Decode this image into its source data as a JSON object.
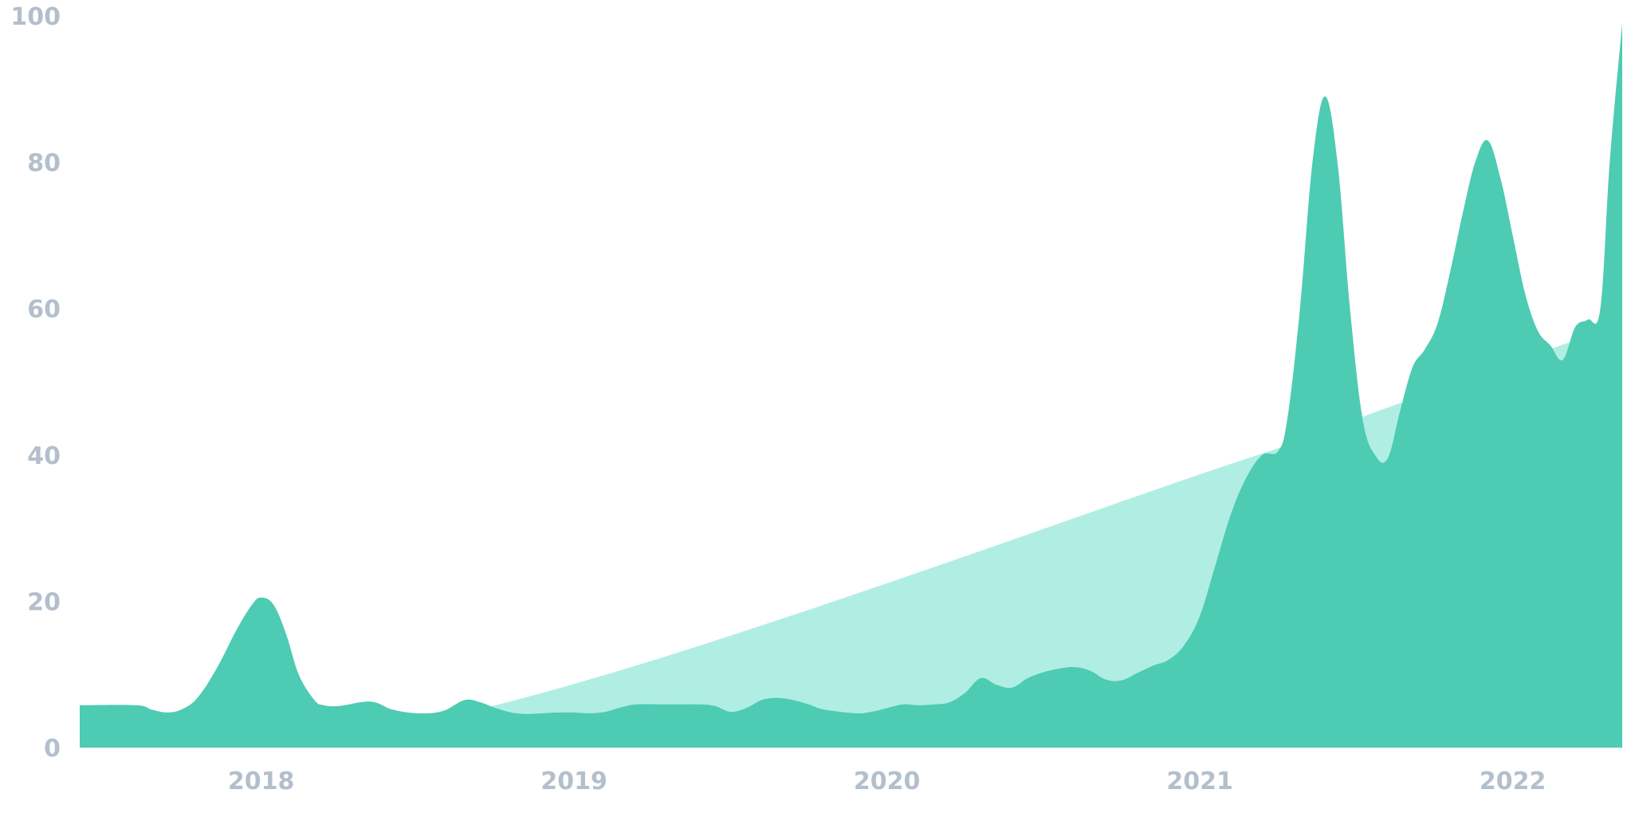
{
  "chart_data": {
    "type": "area",
    "title": "",
    "xlabel": "",
    "ylabel": "",
    "ylim": [
      0,
      100
    ],
    "y_ticks": [
      "0",
      "20",
      "40",
      "60",
      "80",
      "100"
    ],
    "x_ticks": [
      "2018",
      "2019",
      "2020",
      "2021",
      "2022"
    ],
    "x_tick_values": [
      2018.0,
      2019.0,
      2020.0,
      2021.0,
      2022.0
    ],
    "xlim": [
      2017.42,
      2022.35
    ],
    "grid": false,
    "legend": "none",
    "series": [
      {
        "role": "trend",
        "color": "#b0eee4",
        "x": [
          2017.42,
          2018.6,
          2021.15,
          2021.57,
          2022.35
        ],
        "y": [
          5.5,
          4.3,
          39.5,
          46,
          58
        ]
      },
      {
        "role": "main",
        "color": "#4ecbb3",
        "x": [
          2017.42,
          2017.6,
          2017.65,
          2017.7,
          2017.75,
          2017.8,
          2017.86,
          2017.92,
          2017.97,
          2018.0,
          2018.04,
          2018.08,
          2018.12,
          2018.17,
          2018.2,
          2018.25,
          2018.35,
          2018.42,
          2018.5,
          2018.58,
          2018.65,
          2018.7,
          2018.75,
          2018.8,
          2018.85,
          2018.9,
          2018.95,
          2019.0,
          2019.05,
          2019.1,
          2019.15,
          2019.2,
          2019.3,
          2019.4,
          2019.45,
          2019.5,
          2019.55,
          2019.6,
          2019.65,
          2019.7,
          2019.75,
          2019.8,
          2019.9,
          2019.95,
          2020.0,
          2020.05,
          2020.1,
          2020.15,
          2020.2,
          2020.25,
          2020.3,
          2020.35,
          2020.4,
          2020.45,
          2020.5,
          2020.55,
          2020.6,
          2020.65,
          2020.7,
          2020.75,
          2020.8,
          2020.85,
          2020.9,
          2020.95,
          2021.0,
          2021.05,
          2021.1,
          2021.15,
          2021.2,
          2021.25,
          2021.28,
          2021.32,
          2021.36,
          2021.4,
          2021.44,
          2021.48,
          2021.52,
          2021.56,
          2021.6,
          2021.64,
          2021.68,
          2021.72,
          2021.76,
          2021.8,
          2021.84,
          2021.88,
          2021.92,
          2021.96,
          2022.0,
          2022.04,
          2022.08,
          2022.12,
          2022.16,
          2022.2,
          2022.24,
          2022.28,
          2022.31,
          2022.35
        ],
        "y": [
          5.8,
          5.8,
          5.2,
          4.8,
          5.3,
          7,
          11,
          16,
          19.5,
          20.5,
          19.5,
          15.5,
          10,
          6.5,
          5.8,
          5.7,
          6.3,
          5.2,
          4.7,
          5.0,
          6.5,
          6.2,
          5.4,
          4.8,
          4.6,
          4.7,
          4.8,
          4.8,
          4.7,
          4.9,
          5.5,
          5.9,
          5.9,
          5.9,
          5.7,
          4.9,
          5.4,
          6.5,
          6.8,
          6.5,
          5.9,
          5.2,
          4.7,
          4.9,
          5.4,
          5.9,
          5.8,
          5.9,
          6.2,
          7.5,
          9.5,
          8.6,
          8.2,
          9.5,
          10.3,
          10.8,
          11.0,
          10.5,
          9.3,
          9.2,
          10.2,
          11.2,
          12.0,
          14,
          18,
          25,
          32,
          37,
          40,
          40.5,
          45,
          60,
          80,
          89,
          80,
          60,
          45,
          40,
          39.5,
          46,
          52,
          54.5,
          58,
          65,
          73,
          80,
          83,
          78,
          70,
          62,
          57,
          55,
          53,
          57.5,
          58.5,
          60,
          80,
          99
        ]
      }
    ]
  }
}
